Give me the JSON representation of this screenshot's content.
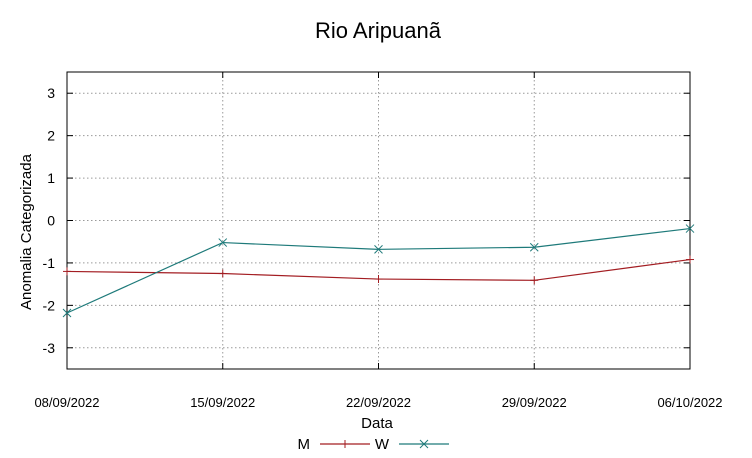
{
  "chart_data": {
    "type": "line",
    "title": "Rio Aripuanã",
    "xlabel": "Data",
    "ylabel": "Anomalia Categorizada",
    "categories": [
      "08/09/2022",
      "15/09/2022",
      "22/09/2022",
      "29/09/2022",
      "06/10/2022"
    ],
    "ylim": [
      -3.5,
      3.5
    ],
    "yticks": [
      -3,
      -2,
      -1,
      0,
      1,
      2,
      3
    ],
    "grid": true,
    "legend_position": "bottom-center",
    "series": [
      {
        "name": "M",
        "marker": "plus",
        "color": "#a31d22",
        "values": [
          -1.2,
          -1.25,
          -1.38,
          -1.41,
          -0.92
        ]
      },
      {
        "name": "W",
        "marker": "x",
        "color": "#1e7a7a",
        "values": [
          -2.18,
          -0.52,
          -0.68,
          -0.63,
          -0.19
        ]
      }
    ]
  }
}
